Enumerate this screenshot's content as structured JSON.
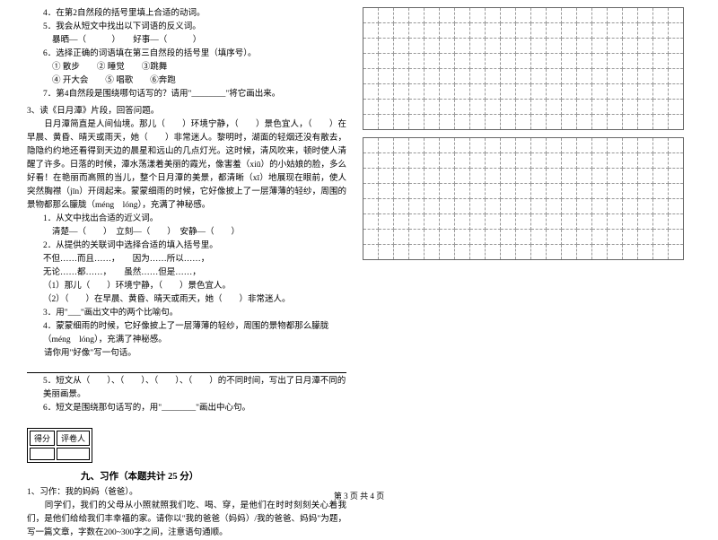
{
  "left": {
    "q4": "4．在第2自然段的括号里填上合适的动词。",
    "q5": "5．我会从短文中找出以下词语的反义词。",
    "q5a": "暴晒—（　　　）　　好事—（　　　）",
    "q6": "6．选择正确的词语填在第三自然段的括号里（填序号）。",
    "q6a": "① 散步　　② 睡觉　　③跳舞",
    "q6b": "④ 开大会　　⑤ 唱歌　　⑥奔跑",
    "q7": "7．第4自然段是围绕哪句话写的？请用\"________\"将它画出来。",
    "p3intro": "3、读《日月潭》片段，回答问题。",
    "p3body": "　　日月潭简直是人间仙境。那儿（　　）环境宁静，（　　）景色宜人，（　　）在早晨、黄昏、晴天或雨天，她（　　）非常迷人。黎明时，湖面的轻烟还没有散去，隐隐约约地还看得到天边的晨星和远山的几点灯光。这时候，清风吹来，顿时使人清醒了许多。日落的时候，潭水荡漾着美丽的霞光，像害羞（xiū）的小姑娘的脸，多么好看！在艳丽而高照的当儿，整个日月潭的美景，都清晰（xī）地展现在眼前，使人突然胸襟（jīn）开阔起来。蒙蒙细雨的时候，它好像披上了一层薄薄的轻纱，周围的景物都那么朦胧（méng　lóng），充满了神秘感。",
    "sq1": "1．从文中找出合适的近义词。",
    "sq1a": "清楚—（　　）　立刻—（　　）　安静—（　　）",
    "sq2": "2．从提供的关联词中选择合适的填入括号里。",
    "sq2a": "不但……而且……，　　因为……所以……，",
    "sq2b": "无论……都……，　　虽然……但是……，",
    "sq2c": "（1）那儿（　　）环境宁静，（　　）景色宜人。",
    "sq2d": "（2）（　　）在早晨、黄昏、晴天或雨天，她（　　）非常迷人。",
    "sq3": "3．用\"___\"画出文中的两个比喻句。",
    "sq4": "4．蒙蒙细雨的时候，它好像披上了一层薄薄的轻纱，周围的景物都那么朦胧（méng　lóng），充满了神秘感。",
    "sq4a": "　　请你用\"好像\"写一句话。",
    "sq5": "5．短文从（　　）、（　　）、（　　）、（　　）的不同时间，写出了日月潭不同的美丽画景。",
    "sq6": "6．短文是围绕那句话写的，用\"________\"画出中心句。",
    "score_hdr1": "得分",
    "score_hdr2": "评卷人",
    "section9": "九、习作（本题共计 25 分）",
    "w1": "1、习作：我的妈妈（爸爸）。",
    "w1body": "　　同学们，我们的父母从小照就照我们吃、喝、穿，是他们在时时刻刻关心着我们，是他们给给我们丰幸福的家。请你以\"我的爸爸（妈妈）/我的爸爸、妈妈\"为题，写一篇文章，字数在200~300字之间，注意语句通顺。"
  },
  "footer": "第 3 页 共 4 页",
  "grid": {
    "rows": 8,
    "cols": 21,
    "blocks": 2
  }
}
